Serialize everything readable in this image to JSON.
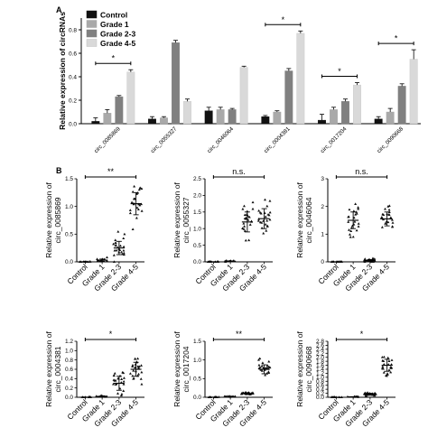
{
  "panel_letters": [
    "A",
    "B"
  ],
  "chart_data": [
    {
      "panel": "A",
      "type": "bar",
      "ylabel": "Relative expression of circRNAs",
      "ylim": [
        0,
        0.9
      ],
      "yticks": [
        0.0,
        0.2,
        0.4,
        0.6,
        0.8
      ],
      "ytick_labels": [
        "0.0",
        "0.2",
        "0.4",
        "0.6",
        "0.8"
      ],
      "categories": [
        "circ_0085869",
        "circ_0055327",
        "circ_0046064",
        "circ_0004381",
        "circ_0017204",
        "circ_0090668"
      ],
      "series": [
        {
          "name": "Control",
          "color": "#111111",
          "values": [
            0.02,
            0.04,
            0.11,
            0.06,
            0.03,
            0.04
          ],
          "errors": [
            0.03,
            0.02,
            0.03,
            0.01,
            0.05,
            0.02
          ]
        },
        {
          "name": "Grade 1",
          "color": "#a9a9a9",
          "values": [
            0.09,
            0.05,
            0.12,
            0.1,
            0.12,
            0.1
          ],
          "errors": [
            0.03,
            0.01,
            0.02,
            0.01,
            0.02,
            0.03
          ]
        },
        {
          "name": "Grade 2-3",
          "color": "#808080",
          "values": [
            0.23,
            0.69,
            0.12,
            0.45,
            0.19,
            0.32
          ],
          "errors": [
            0.01,
            0.02,
            0.01,
            0.02,
            0.02,
            0.02
          ]
        },
        {
          "name": "Grade 4-5",
          "color": "#d9d9d9",
          "values": [
            0.44,
            0.19,
            0.48,
            0.77,
            0.33,
            0.55
          ],
          "errors": [
            0.02,
            0.02,
            0.01,
            0.02,
            0.02,
            0.08
          ]
        }
      ],
      "significance": [
        {
          "category": "circ_0085869",
          "label": "*"
        },
        {
          "category": "circ_0004381",
          "label": "*"
        },
        {
          "category": "circ_0017204",
          "label": "*"
        },
        {
          "category": "circ_0090668",
          "label": "*"
        }
      ]
    },
    {
      "panel": "B",
      "type": "scatter",
      "ylabel_lines": [
        "Relative expression of",
        "circ_0085869"
      ],
      "categories": [
        "Control",
        "Grade 1",
        "Grade 2-3",
        "Grade 4-5"
      ],
      "ylim": [
        0,
        1.5
      ],
      "yticks": [
        0.0,
        0.5,
        1.0,
        1.5
      ],
      "ytick_labels": [
        "0.0",
        "0.5",
        "1.0",
        "1.5"
      ],
      "groups": [
        {
          "mean": 0.0,
          "sd": 0.005
        },
        {
          "mean": 0.03,
          "sd": 0.02
        },
        {
          "mean": 0.25,
          "sd": 0.12
        },
        {
          "mean": 1.05,
          "sd": 0.2
        }
      ],
      "significance": {
        "label": "**"
      }
    },
    {
      "panel": "B",
      "type": "scatter",
      "ylabel_lines": [
        "Relative expression of",
        "circ_0055327"
      ],
      "categories": [
        "Control",
        "Grade 1",
        "Grade 2-3",
        "Grade 4-5"
      ],
      "ylim": [
        0,
        2.5
      ],
      "yticks": [
        0.0,
        0.5,
        1.0,
        1.5,
        2.0,
        2.5
      ],
      "ytick_labels": [
        "0.0",
        "0.5",
        "1.0",
        "1.5",
        "2.0",
        "2.5"
      ],
      "groups": [
        {
          "mean": 0.0,
          "sd": 0.005
        },
        {
          "mean": 0.02,
          "sd": 0.01
        },
        {
          "mean": 1.2,
          "sd": 0.3
        },
        {
          "mean": 1.3,
          "sd": 0.3
        }
      ],
      "significance": {
        "label": "n.s."
      }
    },
    {
      "panel": "B",
      "type": "scatter",
      "ylabel_lines": [
        "Relative expression of",
        "circ_0046064"
      ],
      "categories": [
        "Control",
        "Grade 1",
        "Grade 2-3",
        "Grade 4-5"
      ],
      "ylim": [
        0,
        3
      ],
      "yticks": [
        0,
        1,
        2,
        3
      ],
      "ytick_labels": [
        "0",
        "1",
        "2",
        "3"
      ],
      "groups": [
        {
          "mean": 0.0,
          "sd": 0.005
        },
        {
          "mean": 1.5,
          "sd": 0.3
        },
        {
          "mean": 0.05,
          "sd": 0.03
        },
        {
          "mean": 1.55,
          "sd": 0.25
        }
      ],
      "significance": {
        "label": "n.s."
      }
    },
    {
      "panel": "B",
      "type": "scatter",
      "ylabel_lines": [
        "Relative expression of",
        "circ_0004381"
      ],
      "categories": [
        "Control",
        "Grade 1",
        "Grade 2-3",
        "Grade 4-5"
      ],
      "ylim": [
        0,
        1.2
      ],
      "yticks": [
        0.0,
        0.2,
        0.4,
        0.6,
        0.8,
        1.0,
        1.2
      ],
      "ytick_labels": [
        "0.0",
        "0.2",
        "0.4",
        "0.6",
        "0.8",
        "1.0",
        "1.2"
      ],
      "groups": [
        {
          "mean": 0.0,
          "sd": 0.005
        },
        {
          "mean": 0.02,
          "sd": 0.01
        },
        {
          "mean": 0.3,
          "sd": 0.15
        },
        {
          "mean": 0.6,
          "sd": 0.15
        }
      ],
      "significance": {
        "label": "*"
      }
    },
    {
      "panel": "B",
      "type": "scatter",
      "ylabel_lines": [
        "Relative expression of",
        "circ_0017204"
      ],
      "categories": [
        "Control",
        "Grade 1",
        "Grade 2-3",
        "Grade 4-5"
      ],
      "ylim": [
        0,
        1.5
      ],
      "yticks": [
        0.0,
        0.5,
        1.0,
        1.5
      ],
      "ytick_labels": [
        "0.0",
        "0.5",
        "1.0",
        "1.5"
      ],
      "groups": [
        {
          "mean": 0.0,
          "sd": 0.005
        },
        {
          "mean": 0.02,
          "sd": 0.01
        },
        {
          "mean": 0.1,
          "sd": 0.02
        },
        {
          "mean": 0.75,
          "sd": 0.12
        }
      ],
      "significance": {
        "label": "**"
      }
    },
    {
      "panel": "B",
      "type": "scatter",
      "ylabel_lines": [
        "Relative expression of",
        "circ_0090668"
      ],
      "categories": [
        "Control",
        "Grade 1",
        "Grade 2-3",
        "Grade 4-5"
      ],
      "ylim": [
        0,
        2.8
      ],
      "yticks": [
        0.0,
        0.2,
        0.4,
        0.6,
        0.8,
        1.0,
        1.2,
        1.4,
        1.6,
        1.8,
        2.0,
        2.2,
        2.4,
        2.6,
        2.8
      ],
      "ytick_labels": [
        "0.0",
        "0.2",
        "0.4",
        "0.6",
        "0.8",
        "1.0",
        "1.2",
        "1.4",
        "1.6",
        "1.8",
        "2.0",
        "2.2",
        "2.4",
        "2.6",
        "2.8"
      ],
      "groups": [
        {
          "mean": 0.0,
          "sd": 0.005
        },
        {
          "mean": 0.02,
          "sd": 0.01
        },
        {
          "mean": 0.15,
          "sd": 0.05
        },
        {
          "mean": 1.6,
          "sd": 0.3
        }
      ],
      "significance": {
        "label": "*"
      }
    }
  ]
}
